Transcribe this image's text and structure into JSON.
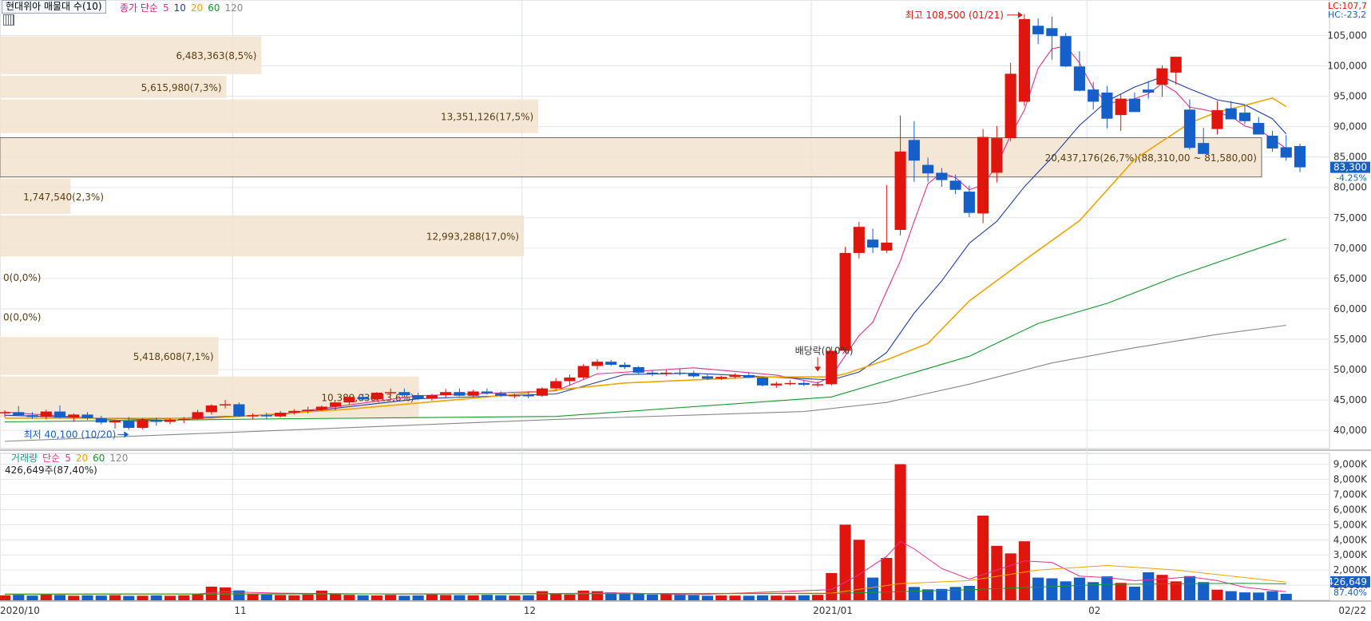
{
  "price_panel": {
    "title": "현대위아 매물대 수(10)",
    "legend": {
      "label": "종가 단순",
      "periods": [
        "5",
        "10",
        "20",
        "60",
        "120"
      ]
    },
    "lc_label": "LC:107,7",
    "hc_label": "HC:-23,2",
    "current_price": "83,300",
    "current_change": "-4.25%",
    "y_ticks": [
      "105,000",
      "100,000",
      "95,000",
      "90,000",
      "85,000",
      "80,000",
      "75,000",
      "70,000",
      "65,000",
      "60,000",
      "55,000",
      "50,000",
      "45,000",
      "40,000"
    ],
    "high_annotation": "최고 108,500 (01/21)",
    "low_annotation": "최저 40,100 (10/20)",
    "event_annotation": "배당락(0.0%)"
  },
  "volume_panel": {
    "title": "거래량",
    "legend": {
      "label": "단순",
      "periods": [
        "5",
        "20",
        "60",
        "120"
      ]
    },
    "info": "426,649주(87,40%)",
    "y_ticks": [
      "9,000K",
      "8,000K",
      "7,000K",
      "6,000K",
      "5,000K",
      "4,000K",
      "3,000K",
      "2,000K",
      "1,000K"
    ],
    "current_volume": "426,649",
    "current_ratio": "87.40%"
  },
  "x_axis": {
    "labels": [
      "2020/10",
      "11",
      "12",
      "2021/01",
      "02"
    ],
    "end_label": "02/22"
  },
  "chart_data": {
    "type": "candlestick",
    "title": "현대위아 매물대 수(10)",
    "ylim": [
      37000,
      109000
    ],
    "y_ticks": [
      105000,
      100000,
      95000,
      90000,
      85000,
      80000,
      75000,
      70000,
      65000,
      60000,
      55000,
      50000,
      45000,
      40000
    ],
    "volume_profile": [
      {
        "label": "6,483,363(8,5%)",
        "low": 98500,
        "high": 105000,
        "volume": 6483363,
        "pct": 8.5
      },
      {
        "label": "5,615,980(7,3%)",
        "low": 94600,
        "high": 98500,
        "volume": 5615980,
        "pct": 7.3
      },
      {
        "label": "13,351,126(17,5%)",
        "low": 88800,
        "high": 94600,
        "volume": 13351126,
        "pct": 17.5
      },
      {
        "label": "20,437,176(26,7%)(88,310,00 ~ 81,580,00)",
        "low": 81580,
        "high": 88310,
        "volume": 20437176,
        "pct": 26.7,
        "highlight": true
      },
      {
        "label": "1,747,540(2,3%)",
        "low": 75500,
        "high": 81580,
        "volume": 1747540,
        "pct": 2.3
      },
      {
        "label": "12,993,288(17,0%)",
        "low": 68500,
        "high": 75500,
        "volume": 12993288,
        "pct": 17.0
      },
      {
        "label": "0(0,0%)",
        "low": 62000,
        "high": 68500,
        "volume": 0,
        "pct": 0.0
      },
      {
        "label": "0(0,0%)",
        "low": 55500,
        "high": 62000,
        "volume": 0,
        "pct": 0.0
      },
      {
        "label": "5,418,608(7,1%)",
        "low": 49000,
        "high": 55500,
        "volume": 5418608,
        "pct": 7.1
      },
      {
        "label": "10,389,036(13,6%)",
        "low": 42000,
        "high": 49000,
        "volume": 10389036,
        "pct": 13.6
      }
    ],
    "candles": [
      [
        42900,
        43300,
        42200,
        43000
      ],
      [
        43000,
        44000,
        42700,
        42500
      ],
      [
        42500,
        43000,
        41900,
        42200
      ],
      [
        42200,
        43400,
        41800,
        43100
      ],
      [
        43100,
        44100,
        42000,
        42100
      ],
      [
        42100,
        42800,
        41400,
        42600
      ],
      [
        42600,
        43000,
        41700,
        42000
      ],
      [
        42000,
        42400,
        41000,
        41300
      ],
      [
        41300,
        41700,
        40300,
        41600
      ],
      [
        41600,
        42200,
        40100,
        40400
      ],
      [
        40400,
        42000,
        40200,
        41700
      ],
      [
        41700,
        42100,
        40800,
        41400
      ],
      [
        41400,
        42000,
        41000,
        41800
      ],
      [
        41800,
        42200,
        41200,
        41900
      ],
      [
        41900,
        43400,
        41700,
        43000
      ],
      [
        43000,
        44300,
        42600,
        44100
      ],
      [
        44100,
        45000,
        43600,
        44300
      ],
      [
        44300,
        44600,
        42200,
        42300
      ],
      [
        42300,
        42800,
        41800,
        42500
      ],
      [
        42500,
        42900,
        41900,
        42300
      ],
      [
        42300,
        43200,
        42100,
        42900
      ],
      [
        42900,
        43500,
        42600,
        43200
      ],
      [
        43200,
        43900,
        42800,
        43400
      ],
      [
        43400,
        44100,
        43200,
        43900
      ],
      [
        43900,
        44400,
        43300,
        44600
      ],
      [
        44600,
        45600,
        44200,
        45500
      ],
      [
        45500,
        46000,
        44900,
        45100
      ],
      [
        45100,
        46300,
        44900,
        46200
      ],
      [
        46200,
        46900,
        45700,
        46300
      ],
      [
        46300,
        46900,
        45800,
        45800
      ],
      [
        45800,
        46200,
        45000,
        45200
      ],
      [
        45200,
        46000,
        44900,
        45800
      ],
      [
        45800,
        46800,
        45400,
        46300
      ],
      [
        46300,
        46900,
        45600,
        45700
      ],
      [
        45700,
        46700,
        45400,
        46400
      ],
      [
        46400,
        46900,
        45900,
        46100
      ],
      [
        46100,
        46400,
        45500,
        45700
      ],
      [
        45700,
        46100,
        45300,
        45800
      ],
      [
        45800,
        46400,
        45300,
        45700
      ],
      [
        45700,
        47100,
        45500,
        46900
      ],
      [
        46900,
        48600,
        46700,
        48100
      ],
      [
        48100,
        49200,
        47400,
        48700
      ],
      [
        48700,
        50900,
        48400,
        50600
      ],
      [
        50600,
        51700,
        50000,
        51300
      ],
      [
        51300,
        51600,
        50600,
        50800
      ],
      [
        50800,
        51200,
        50100,
        50400
      ],
      [
        50400,
        50600,
        49300,
        49500
      ],
      [
        49500,
        49900,
        48900,
        49300
      ],
      [
        49300,
        50000,
        49000,
        49500
      ],
      [
        49500,
        50100,
        49100,
        49400
      ],
      [
        49400,
        49800,
        48700,
        48900
      ],
      [
        48900,
        49200,
        48300,
        48500
      ],
      [
        48500,
        49000,
        48300,
        48800
      ],
      [
        48800,
        49400,
        48500,
        49100
      ],
      [
        49100,
        49600,
        48600,
        48700
      ],
      [
        48700,
        48800,
        47200,
        47400
      ],
      [
        47400,
        48000,
        47000,
        47700
      ],
      [
        47700,
        48300,
        47400,
        47800
      ],
      [
        47800,
        48200,
        47300,
        47500
      ],
      [
        47500,
        48000,
        47100,
        47600
      ],
      [
        47600,
        53800,
        47400,
        53100
      ],
      [
        53100,
        70200,
        52700,
        69200
      ],
      [
        69200,
        74300,
        68300,
        73500
      ],
      [
        71400,
        73200,
        69200,
        70100
      ],
      [
        69600,
        80400,
        69200,
        70900
      ],
      [
        73000,
        91800,
        72100,
        85900
      ],
      [
        87800,
        90900,
        80900,
        84400
      ],
      [
        83700,
        84900,
        80900,
        82300
      ],
      [
        82400,
        83200,
        80100,
        81200
      ],
      [
        81100,
        82100,
        78900,
        79600
      ],
      [
        79300,
        80300,
        75100,
        75800
      ],
      [
        75700,
        89600,
        74100,
        88300
      ],
      [
        82400,
        90100,
        80800,
        88100
      ],
      [
        88100,
        100500,
        87600,
        98700
      ],
      [
        94100,
        108500,
        93400,
        107700
      ],
      [
        106600,
        107800,
        103600,
        105200
      ],
      [
        106200,
        108100,
        101000,
        104900
      ],
      [
        104900,
        105400,
        99800,
        99900
      ],
      [
        99900,
        102400,
        95800,
        95900
      ],
      [
        96100,
        97300,
        92800,
        94100
      ],
      [
        95600,
        96700,
        89700,
        91300
      ],
      [
        91900,
        95300,
        89300,
        94600
      ],
      [
        94600,
        95600,
        92700,
        92400
      ],
      [
        96100,
        97500,
        94600,
        95600
      ],
      [
        96900,
        100100,
        94900,
        99600
      ],
      [
        98900,
        101200,
        96900,
        101500
      ],
      [
        92800,
        94500,
        86200,
        86500
      ],
      [
        87300,
        89800,
        85900,
        85500
      ],
      [
        89600,
        94200,
        88700,
        92700
      ],
      [
        93000,
        94200,
        91700,
        91200
      ],
      [
        92300,
        93600,
        90400,
        90900
      ],
      [
        90600,
        91600,
        88700,
        88700
      ],
      [
        88500,
        89300,
        85900,
        86400
      ],
      [
        86600,
        88600,
        84400,
        84900
      ],
      [
        86800,
        87200,
        82500,
        83300
      ]
    ],
    "ma": {
      "5": [
        [
          0,
          43000
        ],
        [
          10,
          41400
        ],
        [
          20,
          42700
        ],
        [
          30,
          45700
        ],
        [
          40,
          46500
        ],
        [
          43,
          49300
        ],
        [
          50,
          50300
        ],
        [
          56,
          49100
        ],
        [
          59,
          47800
        ],
        [
          60,
          48900
        ],
        [
          61,
          52300
        ],
        [
          62,
          55600
        ],
        [
          63,
          57800
        ],
        [
          64,
          62900
        ],
        [
          65,
          67900
        ],
        [
          66,
          74400
        ],
        [
          67,
          80600
        ],
        [
          68,
          82400
        ],
        [
          69,
          81600
        ],
        [
          70,
          79600
        ],
        [
          71,
          80400
        ],
        [
          72,
          83600
        ],
        [
          73,
          88600
        ],
        [
          74,
          92700
        ],
        [
          75,
          99600
        ],
        [
          76,
          102800
        ],
        [
          77,
          103300
        ],
        [
          78,
          100500
        ],
        [
          79,
          96300
        ],
        [
          80,
          93900
        ],
        [
          81,
          94100
        ],
        [
          82,
          94600
        ],
        [
          83,
          95400
        ],
        [
          84,
          97100
        ],
        [
          85,
          95700
        ],
        [
          86,
          93200
        ],
        [
          87,
          92800
        ],
        [
          88,
          92300
        ],
        [
          89,
          91700
        ],
        [
          90,
          90100
        ],
        [
          91,
          89500
        ],
        [
          92,
          88000
        ],
        [
          93,
          86400
        ]
      ],
      "10": [
        [
          0,
          42500
        ],
        [
          10,
          41800
        ],
        [
          20,
          42600
        ],
        [
          30,
          45200
        ],
        [
          40,
          46000
        ],
        [
          45,
          49200
        ],
        [
          50,
          49400
        ],
        [
          60,
          48300
        ],
        [
          62,
          49600
        ],
        [
          64,
          52800
        ],
        [
          66,
          59300
        ],
        [
          68,
          64600
        ],
        [
          70,
          70800
        ],
        [
          72,
          74400
        ],
        [
          74,
          80100
        ],
        [
          76,
          84900
        ],
        [
          78,
          90200
        ],
        [
          80,
          94200
        ],
        [
          82,
          96500
        ],
        [
          84,
          98200
        ],
        [
          86,
          96200
        ],
        [
          88,
          94400
        ],
        [
          90,
          93600
        ],
        [
          92,
          91300
        ],
        [
          93,
          88800
        ]
      ],
      "20": [
        [
          0,
          42000
        ],
        [
          15,
          42000
        ],
        [
          25,
          43500
        ],
        [
          35,
          45500
        ],
        [
          45,
          47800
        ],
        [
          55,
          48800
        ],
        [
          60,
          48800
        ],
        [
          61,
          49300
        ],
        [
          64,
          51600
        ],
        [
          67,
          54300
        ],
        [
          70,
          61300
        ],
        [
          74,
          68000
        ],
        [
          78,
          74500
        ],
        [
          82,
          84600
        ],
        [
          86,
          90600
        ],
        [
          88,
          92400
        ],
        [
          90,
          93500
        ],
        [
          92,
          94700
        ],
        [
          93,
          93300
        ]
      ],
      "60": [
        [
          0,
          41400
        ],
        [
          20,
          41900
        ],
        [
          40,
          42300
        ],
        [
          60,
          45500
        ],
        [
          70,
          52200
        ],
        [
          75,
          57600
        ],
        [
          80,
          60900
        ],
        [
          85,
          65300
        ],
        [
          90,
          69200
        ],
        [
          93,
          71500
        ]
      ],
      "120": [
        [
          0,
          38200
        ],
        [
          20,
          40000
        ],
        [
          40,
          41800
        ],
        [
          58,
          43100
        ],
        [
          64,
          44600
        ],
        [
          70,
          47600
        ],
        [
          76,
          51100
        ],
        [
          82,
          53600
        ],
        [
          88,
          55800
        ],
        [
          93,
          57300
        ]
      ]
    },
    "volume": [
      320,
      360,
      310,
      400,
      350,
      300,
      330,
      310,
      340,
      290,
      300,
      320,
      300,
      330,
      420,
      900,
      850,
      650,
      430,
      380,
      350,
      330,
      380,
      640,
      400,
      360,
      330,
      320,
      360,
      300,
      320,
      380,
      350,
      340,
      330,
      360,
      330,
      310,
      330,
      600,
      420,
      380,
      640,
      600,
      520,
      460,
      420,
      380,
      420,
      360,
      330,
      300,
      320,
      310,
      300,
      330,
      310,
      300,
      330,
      360,
      1800,
      5000,
      4000,
      1500,
      2800,
      9000,
      880,
      720,
      750,
      880,
      950,
      5600,
      3600,
      3100,
      3900,
      1500,
      1450,
      1250,
      1500,
      1200,
      1580,
      1150,
      900,
      1850,
      1680,
      1250,
      1600,
      1200,
      700,
      600,
      520,
      510,
      600,
      427
    ],
    "volume_ma": {
      "5": [
        [
          0,
          380
        ],
        [
          14,
          420
        ],
        [
          16,
          560
        ],
        [
          20,
          470
        ],
        [
          30,
          400
        ],
        [
          40,
          450
        ],
        [
          45,
          480
        ],
        [
          50,
          360
        ],
        [
          60,
          700
        ],
        [
          62,
          1700
        ],
        [
          64,
          2900
        ],
        [
          65,
          3900
        ],
        [
          66,
          3400
        ],
        [
          68,
          2100
        ],
        [
          70,
          1400
        ],
        [
          72,
          2000
        ],
        [
          74,
          2600
        ],
        [
          76,
          2500
        ],
        [
          78,
          1600
        ],
        [
          80,
          1500
        ],
        [
          82,
          1300
        ],
        [
          84,
          1400
        ],
        [
          86,
          1550
        ],
        [
          88,
          1300
        ],
        [
          90,
          860
        ],
        [
          93,
          570
        ]
      ],
      "20": [
        [
          0,
          400
        ],
        [
          30,
          420
        ],
        [
          60,
          470
        ],
        [
          65,
          1100
        ],
        [
          70,
          1300
        ],
        [
          75,
          2000
        ],
        [
          80,
          2300
        ],
        [
          85,
          2000
        ],
        [
          90,
          1500
        ],
        [
          93,
          1200
        ]
      ],
      "60": [
        [
          0,
          410
        ],
        [
          60,
          440
        ],
        [
          70,
          700
        ],
        [
          80,
          1050
        ],
        [
          90,
          1120
        ],
        [
          93,
          1080
        ]
      ]
    },
    "volume_ylim": [
      0,
      9400
    ],
    "x_labels": [
      {
        "label": "2020/10",
        "index": 0
      },
      {
        "label": "11",
        "index": 17
      },
      {
        "label": "12",
        "index": 38
      },
      {
        "label": "2021/01",
        "index": 59
      },
      {
        "label": "02",
        "index": 79
      }
    ],
    "ma_colors": {
      "5": "#e8308c",
      "10": "#1f3fa8",
      "20": "#f0a400",
      "60": "#159a2c",
      "120": "#888888"
    },
    "candle_colors": {
      "up": "#e0160e",
      "down": "#1560c8"
    }
  }
}
